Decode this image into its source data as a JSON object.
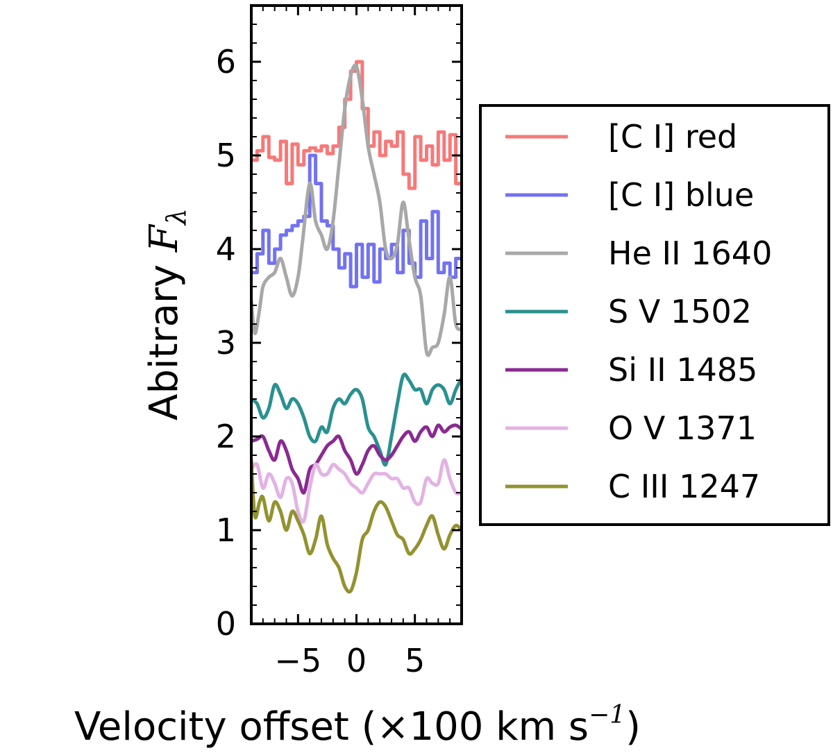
{
  "chart_data": {
    "type": "line",
    "title": "",
    "xlabel": "Velocity offset (×100 km s⁻¹)",
    "xlabel_parts": {
      "prefix": "Velocity offset (×100 km s",
      "exponent": "−1",
      "suffix": ")"
    },
    "ylabel": "Abitrary F_λ",
    "ylabel_parts": {
      "text": "Abitrary ",
      "symbol": "F",
      "subscript": "λ"
    },
    "xlim": [
      -9,
      9
    ],
    "ylim": [
      0,
      6.6
    ],
    "xticks": [
      -5,
      0,
      5
    ],
    "xtick_labels": [
      "−5",
      "0",
      "5"
    ],
    "yticks": [
      0,
      1,
      2,
      3,
      4,
      5,
      6
    ],
    "ytick_labels": [
      "0",
      "1",
      "2",
      "3",
      "4",
      "5",
      "6"
    ],
    "legend_position": "right",
    "series": [
      {
        "name": "[C I] red",
        "color": "#f87878",
        "step": true,
        "x": [
          -9,
          -8.5,
          -8,
          -7.5,
          -7,
          -6.5,
          -6,
          -5.5,
          -5,
          -4.5,
          -4,
          -3.5,
          -3,
          -2.5,
          -2,
          -1.5,
          -1,
          -0.5,
          0,
          0.5,
          1,
          1.5,
          2,
          2.5,
          3,
          3.5,
          4,
          4.5,
          5,
          5.5,
          6,
          6.5,
          7,
          7.5,
          8,
          8.5
        ],
        "y": [
          4.95,
          5.05,
          5.2,
          4.98,
          4.95,
          5.15,
          4.7,
          5.12,
          4.9,
          5.05,
          5.08,
          5.05,
          5.1,
          5.02,
          5.1,
          5.3,
          5.6,
          5.9,
          6.0,
          5.5,
          5.1,
          5.25,
          5.0,
          5.15,
          5.1,
          5.25,
          4.8,
          4.65,
          5.2,
          4.95,
          5.1,
          4.9,
          5.25,
          4.95,
          5.22,
          4.7
        ]
      },
      {
        "name": "[C I] blue",
        "color": "#7272f2",
        "step": true,
        "x": [
          -9,
          -8.5,
          -8,
          -7.5,
          -7,
          -6.5,
          -6,
          -5.5,
          -5,
          -4.5,
          -4,
          -3.5,
          -3,
          -2.5,
          -2,
          -1.5,
          -1,
          -0.5,
          0,
          0.5,
          1,
          1.5,
          2,
          2.5,
          3,
          3.5,
          4,
          4.5,
          5,
          5.5,
          6,
          6.5,
          7,
          7.5,
          8,
          8.5
        ],
        "y": [
          3.75,
          3.95,
          4.2,
          3.85,
          4.0,
          4.15,
          4.2,
          4.25,
          4.3,
          4.35,
          5.0,
          4.7,
          4.3,
          4.25,
          4.0,
          3.8,
          3.95,
          3.6,
          4.05,
          3.7,
          4.05,
          3.65,
          4.0,
          3.9,
          4.05,
          3.75,
          4.2,
          3.85,
          3.7,
          4.3,
          3.9,
          4.4,
          3.75,
          3.85,
          3.7,
          3.9
        ]
      },
      {
        "name": "He II 1640",
        "color": "#a8a8a8",
        "step": false,
        "x": [
          -9,
          -8.7,
          -8.3,
          -8,
          -7.5,
          -7,
          -6.5,
          -6,
          -5.5,
          -5,
          -4.6,
          -4,
          -3.5,
          -3,
          -2.5,
          -2,
          -1.5,
          -1,
          -0.5,
          0,
          0.5,
          1,
          1.5,
          2,
          2.5,
          3,
          3.5,
          4,
          4.5,
          5,
          5.5,
          6,
          6.5,
          7,
          7.5,
          8,
          8.5,
          9
        ],
        "y": [
          3.45,
          3.1,
          3.35,
          3.6,
          3.7,
          3.75,
          3.9,
          3.7,
          3.5,
          3.7,
          4.1,
          4.7,
          4.3,
          4.15,
          4.0,
          4.3,
          4.9,
          5.5,
          5.85,
          5.95,
          5.6,
          5.1,
          4.8,
          4.5,
          4.0,
          3.9,
          4.05,
          4.5,
          4.1,
          3.7,
          3.5,
          2.9,
          2.95,
          3.0,
          3.3,
          3.7,
          3.2,
          3.15
        ]
      },
      {
        "name": "S V 1502",
        "color": "#2a9090",
        "step": false,
        "x": [
          -9,
          -8.5,
          -8,
          -7.5,
          -7,
          -6.5,
          -6,
          -5.5,
          -5,
          -4.5,
          -4,
          -3.5,
          -3,
          -2.5,
          -2,
          -1.5,
          -1,
          -0.5,
          0,
          0.5,
          1,
          1.5,
          2,
          2.5,
          3,
          3.5,
          4,
          4.5,
          5,
          5.5,
          6,
          6.5,
          7,
          7.5,
          8,
          8.5,
          9
        ],
        "y": [
          2.4,
          2.35,
          2.2,
          2.3,
          2.55,
          2.45,
          2.3,
          2.4,
          2.35,
          2.2,
          2.0,
          1.95,
          2.1,
          2.05,
          2.3,
          2.4,
          2.35,
          2.45,
          2.5,
          2.4,
          2.1,
          2.0,
          1.85,
          1.7,
          2.0,
          2.35,
          2.65,
          2.6,
          2.5,
          2.5,
          2.35,
          2.5,
          2.55,
          2.5,
          2.35,
          2.5,
          2.62
        ]
      },
      {
        "name": "Si II 1485",
        "color": "#8a2a92",
        "step": false,
        "x": [
          -9,
          -8.5,
          -8,
          -7.5,
          -7,
          -6.5,
          -6,
          -5.5,
          -5,
          -4.5,
          -4,
          -3.5,
          -3,
          -2.5,
          -2,
          -1.5,
          -1,
          -0.5,
          0,
          0.5,
          1,
          1.5,
          2,
          2.5,
          3,
          3.5,
          4,
          4.5,
          5,
          5.5,
          6,
          6.5,
          7,
          7.5,
          8,
          8.5,
          9
        ],
        "y": [
          1.95,
          1.97,
          2.0,
          1.85,
          1.75,
          1.95,
          1.85,
          1.65,
          1.55,
          1.4,
          1.65,
          1.7,
          1.8,
          1.9,
          1.95,
          2.0,
          1.85,
          1.75,
          1.6,
          1.7,
          1.85,
          1.9,
          1.8,
          1.75,
          1.8,
          1.9,
          2.0,
          2.05,
          1.95,
          2.05,
          2.1,
          2.0,
          2.12,
          2.05,
          2.1,
          2.12,
          2.08
        ]
      },
      {
        "name": "O V 1371",
        "color": "#e3b2e3",
        "step": false,
        "x": [
          -9,
          -8.5,
          -8,
          -7.5,
          -7,
          -6.5,
          -6,
          -5.5,
          -5,
          -4.5,
          -4,
          -3.5,
          -3,
          -2.5,
          -2,
          -1.5,
          -1,
          -0.5,
          0,
          0.5,
          1,
          1.5,
          2,
          2.5,
          3,
          3.5,
          4,
          4.5,
          5,
          5.5,
          6,
          6.5,
          7,
          7.5,
          8,
          8.5,
          9
        ],
        "y": [
          1.65,
          1.7,
          1.45,
          1.6,
          1.5,
          1.35,
          1.55,
          1.5,
          1.2,
          1.1,
          1.45,
          1.7,
          1.6,
          1.6,
          1.7,
          1.65,
          1.6,
          1.5,
          1.45,
          1.4,
          1.5,
          1.6,
          1.6,
          1.6,
          1.55,
          1.55,
          1.45,
          1.45,
          1.3,
          1.3,
          1.55,
          1.5,
          1.5,
          1.75,
          1.55,
          1.4,
          1.4
        ]
      },
      {
        "name": "C III 1247",
        "color": "#929230",
        "step": false,
        "x": [
          -9,
          -8.7,
          -8.3,
          -8,
          -7.5,
          -7,
          -6.5,
          -6,
          -5.5,
          -5,
          -4.5,
          -4,
          -3.5,
          -3,
          -2.5,
          -2,
          -1.5,
          -1,
          -0.5,
          0,
          0.5,
          1,
          1.5,
          2,
          2.5,
          3,
          3.5,
          4,
          4.5,
          5,
          5.5,
          6,
          6.5,
          7,
          7.5,
          8,
          8.5,
          9
        ],
        "y": [
          1.75,
          1.15,
          1.3,
          1.35,
          1.1,
          1.3,
          1.2,
          1.0,
          1.2,
          1.1,
          0.95,
          0.75,
          0.9,
          1.15,
          0.85,
          0.7,
          0.6,
          0.4,
          0.35,
          0.55,
          0.9,
          1.0,
          1.2,
          1.3,
          1.25,
          1.1,
          0.95,
          0.9,
          0.75,
          0.8,
          0.9,
          1.05,
          1.15,
          0.95,
          0.8,
          0.95,
          1.05,
          1.0
        ]
      }
    ]
  }
}
